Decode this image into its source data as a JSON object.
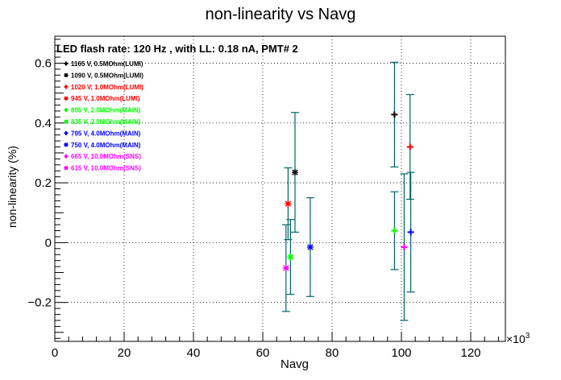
{
  "chart_data": {
    "type": "scatter",
    "title": "non-linearity vs Navg",
    "subtitle": "LED flash rate: 120 Hz , with LL: 0.18 nA, PMT# 2",
    "xlabel": "Navg",
    "ylabel": "non-linearity (%)",
    "x_multiplier_label": "×10",
    "x_multiplier_exp": "3",
    "xlim": [
      0,
      130
    ],
    "ylim": [
      -0.33,
      0.69
    ],
    "grid": true,
    "legend_position": "top-left",
    "x_ticks": [
      0,
      20,
      40,
      60,
      80,
      100,
      120
    ],
    "x_tick_labels": [
      "0",
      "20",
      "40",
      "60",
      "80",
      "100",
      "120"
    ],
    "y_ticks": [
      -0.2,
      0,
      0.2,
      0.4,
      0.6
    ],
    "y_tick_labels": [
      "−0.2",
      "0",
      "0.2",
      "0.4",
      "0.6"
    ],
    "series": [
      {
        "name": "1165 V, 0.5MOhm(LUMI)",
        "color": "#000000",
        "marker": "plus",
        "points": []
      },
      {
        "name": "1090 V, 0.5MOhm(LUMI)",
        "color": "#000000",
        "marker": "star",
        "points": [
          {
            "x": 69.3,
            "y": 0.235,
            "err": 0.2
          }
        ]
      },
      {
        "name": "1020 V, 1.0MOhm(LUMI)",
        "color": "#ff0000",
        "marker": "plus",
        "points": [
          {
            "x": 102.5,
            "y": 0.32,
            "err": 0.175
          }
        ]
      },
      {
        "name": "945 V, 1.0MOhm(LUMI)",
        "color": "#ff0000",
        "marker": "star",
        "points": [
          {
            "x": 67.3,
            "y": 0.13,
            "err": 0.12
          }
        ]
      },
      {
        "name": "895 V, 2.0MOhm(MAIN)",
        "color": "#00ff00",
        "marker": "plus",
        "points": [
          {
            "x": 98.0,
            "y": 0.04,
            "err": 0.13
          }
        ]
      },
      {
        "name": "835 V, 2.0MOhm(MAIN)",
        "color": "#00ff00",
        "marker": "star",
        "points": [
          {
            "x": 68.0,
            "y": -0.048,
            "err": 0.125
          }
        ]
      },
      {
        "name": "795 V, 4.0MOhm(MAIN)",
        "color": "#0000ff",
        "marker": "plus",
        "points": [
          {
            "x": 102.7,
            "y": 0.035,
            "err": 0.2
          }
        ]
      },
      {
        "name": "750 V, 4.0MOhm(MAIN)",
        "color": "#0000ff",
        "marker": "star",
        "points": [
          {
            "x": 73.7,
            "y": -0.015,
            "err": 0.165
          }
        ]
      },
      {
        "name": "665 V, 10.0MOhm(SNS)",
        "color": "#ff00ff",
        "marker": "plus",
        "points": [
          {
            "x": 100.8,
            "y": -0.015,
            "err": 0.245
          }
        ]
      },
      {
        "name": "615 V, 10.0MOhm(SNS)",
        "color": "#ff00ff",
        "marker": "star",
        "points": [
          {
            "x": 66.7,
            "y": -0.085,
            "err": 0.145
          }
        ]
      },
      {
        "name": "",
        "color": "#000000",
        "marker": "plus",
        "points": [
          {
            "x": 98.0,
            "y": 0.428,
            "err": 0.175
          }
        ]
      }
    ]
  }
}
